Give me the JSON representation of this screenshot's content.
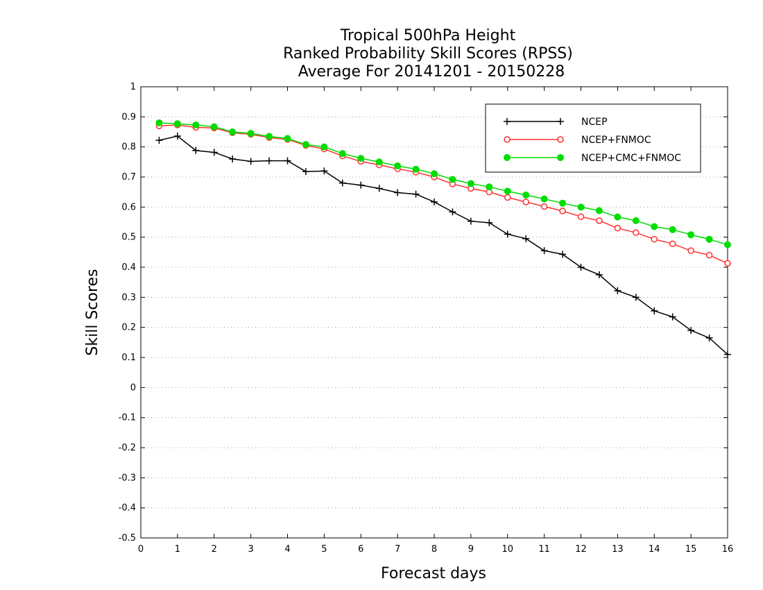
{
  "chart_data": {
    "type": "line",
    "title_lines": [
      "Tropical 500hPa Height",
      "Ranked Probability Skill Scores (RPSS)",
      "Average For 20141201 - 20150228"
    ],
    "xlabel": "Forecast days",
    "ylabel": "Skill Scores",
    "xlim": [
      0,
      16
    ],
    "ylim": [
      -0.5,
      1
    ],
    "x_ticks": [
      "0",
      "1",
      "2",
      "3",
      "4",
      "5",
      "6",
      "7",
      "8",
      "9",
      "10",
      "11",
      "12",
      "13",
      "14",
      "15",
      "16"
    ],
    "y_ticks": [
      "-0.5",
      "-0.4",
      "-0.3",
      "-0.2",
      "-0.1",
      "0",
      "0.1",
      "0.2",
      "0.3",
      "0.4",
      "0.5",
      "0.6",
      "0.7",
      "0.8",
      "0.9",
      "1"
    ],
    "grid": "horizontal-dotted",
    "legend_position": "top-right",
    "x": [
      0.5,
      1,
      1.5,
      2,
      2.5,
      3,
      3.5,
      4,
      4.5,
      5,
      5.5,
      6,
      6.5,
      7,
      7.5,
      8,
      8.5,
      9,
      9.5,
      10,
      10.5,
      11,
      11.5,
      12,
      12.5,
      13,
      13.5,
      14,
      14.5,
      15,
      15.5,
      16
    ],
    "series": [
      {
        "name": "NCEP",
        "color": "#000000",
        "marker": "plus",
        "values": [
          0.822,
          0.836,
          0.788,
          0.782,
          0.76,
          0.752,
          0.754,
          0.754,
          0.718,
          0.72,
          0.68,
          0.673,
          0.662,
          0.648,
          0.643,
          0.617,
          0.584,
          0.553,
          0.548,
          0.51,
          0.495,
          0.455,
          0.443,
          0.4,
          0.375,
          0.322,
          0.3,
          0.255,
          0.235,
          0.19,
          0.165,
          0.11
        ]
      },
      {
        "name": "NCEP+FNMOC",
        "color": "#ff3030",
        "marker": "open-circle",
        "values": [
          0.87,
          0.873,
          0.865,
          0.863,
          0.847,
          0.842,
          0.831,
          0.825,
          0.805,
          0.793,
          0.77,
          0.752,
          0.74,
          0.727,
          0.716,
          0.7,
          0.677,
          0.662,
          0.65,
          0.632,
          0.617,
          0.602,
          0.587,
          0.568,
          0.555,
          0.53,
          0.515,
          0.493,
          0.478,
          0.455,
          0.44,
          0.413
        ]
      },
      {
        "name": "NCEP+CMC+FNMOC",
        "color": "#00dd00",
        "marker": "filled-circle",
        "values": [
          0.88,
          0.877,
          0.873,
          0.867,
          0.85,
          0.845,
          0.835,
          0.828,
          0.808,
          0.8,
          0.778,
          0.762,
          0.75,
          0.737,
          0.726,
          0.711,
          0.692,
          0.678,
          0.667,
          0.653,
          0.64,
          0.627,
          0.613,
          0.6,
          0.588,
          0.567,
          0.555,
          0.535,
          0.525,
          0.508,
          0.493,
          0.475
        ]
      }
    ]
  }
}
